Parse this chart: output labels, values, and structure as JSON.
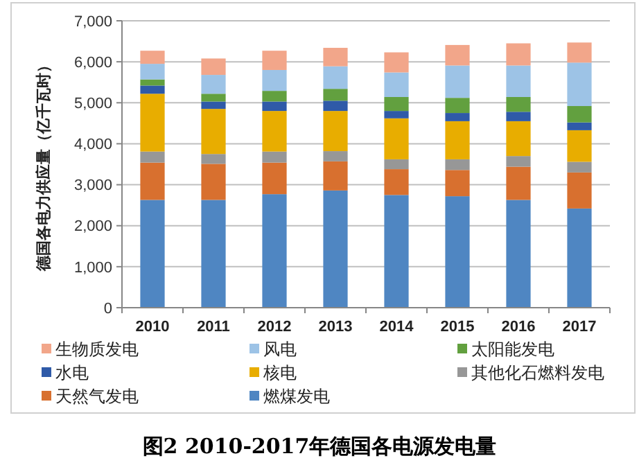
{
  "chart_data": {
    "type": "bar",
    "stacked": true,
    "title": "图2 2010-2017年德国各电源发电量",
    "ylabel": "德国各电力供应量（亿千瓦时）",
    "categories": [
      "2010",
      "2011",
      "2012",
      "2013",
      "2014",
      "2015",
      "2016",
      "2017"
    ],
    "series": [
      {
        "name": "燃煤发电",
        "color": "#4f86c2",
        "values": [
          2630,
          2630,
          2770,
          2860,
          2750,
          2720,
          2630,
          2420
        ]
      },
      {
        "name": "天然气发电",
        "color": "#d8702f",
        "values": [
          910,
          880,
          770,
          710,
          630,
          640,
          810,
          880
        ]
      },
      {
        "name": "其他化石燃料发电",
        "color": "#979797",
        "values": [
          270,
          240,
          270,
          250,
          240,
          260,
          260,
          260
        ]
      },
      {
        "name": "核电",
        "color": "#e8ad00",
        "values": [
          1410,
          1100,
          990,
          980,
          1000,
          930,
          850,
          770
        ]
      },
      {
        "name": "水电",
        "color": "#2f5aa8",
        "values": [
          200,
          180,
          230,
          250,
          180,
          200,
          230,
          190
        ]
      },
      {
        "name": "太阳能发电",
        "color": "#62a03f",
        "values": [
          150,
          190,
          260,
          290,
          340,
          370,
          360,
          400
        ]
      },
      {
        "name": "风电",
        "color": "#9dc3e6",
        "values": [
          380,
          460,
          510,
          550,
          600,
          790,
          770,
          1060
        ]
      },
      {
        "name": "生物质发电",
        "color": "#f2a68a",
        "values": [
          320,
          400,
          470,
          450,
          490,
          500,
          540,
          490
        ]
      }
    ],
    "ylim": [
      0,
      7000
    ],
    "yticks": [
      0,
      {
        "value": 1000,
        "label": "1,000"
      },
      {
        "value": 2000,
        "label": "2,000"
      },
      {
        "value": 3000,
        "label": "3,000"
      },
      {
        "value": 4000,
        "label": "4,000"
      },
      {
        "value": 5000,
        "label": "5,000"
      },
      {
        "value": 6000,
        "label": "6,000"
      },
      {
        "value": 7000,
        "label": "7,000"
      }
    ],
    "grid": "y",
    "legend": "bottom"
  }
}
